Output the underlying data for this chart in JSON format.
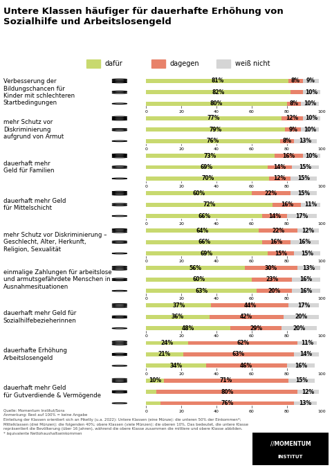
{
  "title": "Untere Klassen häufiger für dauerhafte Erhöhung von\nSozialhilfe und Arbeitslosengeld",
  "legend": [
    "dafür",
    "dagegen",
    "weiß nicht"
  ],
  "colors": {
    "dafür": "#c8d96f",
    "dagegen": "#e8826a",
    "weiß nicht": "#d5d5d5"
  },
  "groups": [
    {
      "label": "Verbesserung der\nBildungschancen für\nKinder mit schlechteren\nStartbedingungen",
      "rows": [
        {
          "dafür": 81,
          "dagegen": 8,
          "weiß nicht": 9
        },
        {
          "dafür": 82,
          "dagegen": 7,
          "weiß nicht": 10
        },
        {
          "dafür": 80,
          "dagegen": 8,
          "weiß nicht": 10
        }
      ]
    },
    {
      "label": "mehr Schutz vor\nDiskriminierung\naufgrund von Armut",
      "rows": [
        {
          "dafür": 77,
          "dagegen": 12,
          "weiß nicht": 10
        },
        {
          "dafür": 79,
          "dagegen": 9,
          "weiß nicht": 10
        },
        {
          "dafür": 76,
          "dagegen": 8,
          "weiß nicht": 13
        }
      ]
    },
    {
      "label": "dauerhaft mehr\nGeld für Familien",
      "rows": [
        {
          "dafür": 73,
          "dagegen": 16,
          "weiß nicht": 10
        },
        {
          "dafür": 69,
          "dagegen": 14,
          "weiß nicht": 15
        },
        {
          "dafür": 70,
          "dagegen": 12,
          "weiß nicht": 15
        }
      ]
    },
    {
      "label": "dauerhaft mehr Geld\nfür Mittelschicht",
      "rows": [
        {
          "dafür": 60,
          "dagegen": 22,
          "weiß nicht": 15
        },
        {
          "dafür": 72,
          "dagegen": 16,
          "weiß nicht": 11
        },
        {
          "dafür": 66,
          "dagegen": 14,
          "weiß nicht": 17
        }
      ]
    },
    {
      "label": "mehr Schutz vor Diskriminierung –\nGeschlecht, Alter, Herkunft,\nReligion, Sexualität",
      "rows": [
        {
          "dafür": 64,
          "dagegen": 22,
          "weiß nicht": 12
        },
        {
          "dafür": 66,
          "dagegen": 16,
          "weiß nicht": 16
        },
        {
          "dafür": 69,
          "dagegen": 15,
          "weiß nicht": 15
        }
      ]
    },
    {
      "label": "einmalige Zahlungen für arbeitslose\nund armutsgefährdete Menschen in\nAusnahmesituationen",
      "rows": [
        {
          "dafür": 56,
          "dagegen": 30,
          "weiß nicht": 13
        },
        {
          "dafür": 60,
          "dagegen": 23,
          "weiß nicht": 16
        },
        {
          "dafür": 63,
          "dagegen": 20,
          "weiß nicht": 16
        }
      ]
    },
    {
      "label": "dauerhaft mehr Geld für\nSozialhilfebezieherinnen",
      "rows": [
        {
          "dafür": 37,
          "dagegen": 44,
          "weiß nicht": 17
        },
        {
          "dafür": 36,
          "dagegen": 42,
          "weiß nicht": 20
        },
        {
          "dafür": 48,
          "dagegen": 29,
          "weiß nicht": 20
        }
      ]
    },
    {
      "label": "dauerhafte Erhöhung\nArbeitslosengeld",
      "rows": [
        {
          "dafür": 24,
          "dagegen": 62,
          "weiß nicht": 11
        },
        {
          "dafür": 21,
          "dagegen": 63,
          "weiß nicht": 14
        },
        {
          "dafür": 34,
          "dagegen": 46,
          "weiß nicht": 16
        }
      ]
    },
    {
      "label": "dauerhaft mehr Geld\nfür Gutverdiende & Vermögende",
      "rows": [
        {
          "dafür": 10,
          "dagegen": 71,
          "weiß nicht": 15
        },
        {
          "dafür": 6,
          "dagegen": 80,
          "weiß nicht": 12
        },
        {
          "dafür": 8,
          "dagegen": 76,
          "weiß nicht": 13
        }
      ]
    }
  ],
  "footer_lines": [
    "Quelle: Momentum Institut/Sora",
    "Anmerkung: Rest auf 100% = keine Angabe",
    "Einteilung der Klassen orientiert sich an Piketty (u.a. 2022): Untere Klassen (eine Münze): die unteren 50% der Einkommen*;",
    "Mittelklassen (drei Münzen): die folgenden 40%; obere Klassen (viele Münzen): die oberen 10%. Das bedeutet, die untere Klasse",
    "repräsentiert die Bevölkerung (über 16 Jahren), während die obere Klasse zusammen die mittlere und obere Klasse abbilden.",
    "* äquivalente Nettohaushaltseinkommen"
  ]
}
